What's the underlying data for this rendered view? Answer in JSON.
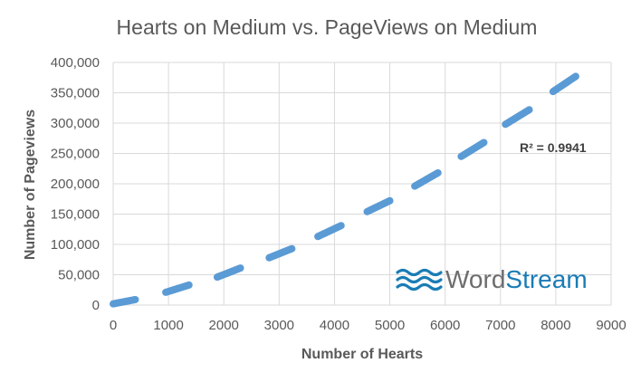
{
  "chart_data": {
    "type": "scatter",
    "title": "Hearts on Medium vs. PageViews on Medium",
    "xlabel": "Number of Hearts",
    "ylabel": "Number of Pageviews",
    "xlim": [
      0,
      9000
    ],
    "ylim": [
      0,
      400000
    ],
    "x_ticks": [
      0,
      1000,
      2000,
      3000,
      4000,
      5000,
      6000,
      7000,
      8000,
      9000
    ],
    "y_ticks": [
      0,
      50000,
      100000,
      150000,
      200000,
      250000,
      300000,
      350000,
      400000
    ],
    "x_tick_labels": [
      "0",
      "1000",
      "2000",
      "3000",
      "4000",
      "5000",
      "6000",
      "7000",
      "8000",
      "9000"
    ],
    "y_tick_labels": [
      "0",
      "50,000",
      "100,000",
      "150,000",
      "200,000",
      "250,000",
      "300,000",
      "350,000",
      "400,000"
    ],
    "grid": {
      "x": true,
      "y": true
    },
    "legend": "none",
    "annotation": "R² = 0.9941",
    "point_color": "#5b9bd5",
    "segments": [
      {
        "x": [
          0,
          400
        ],
        "y": [
          2000,
          9000
        ]
      },
      {
        "x": [
          950,
          1370
        ],
        "y": [
          21000,
          33000
        ]
      },
      {
        "x": [
          1880,
          2300
        ],
        "y": [
          46000,
          61000
        ]
      },
      {
        "x": [
          2820,
          3230
        ],
        "y": [
          78000,
          93000
        ]
      },
      {
        "x": [
          3700,
          4120
        ],
        "y": [
          113000,
          131000
        ]
      },
      {
        "x": [
          4590,
          5000
        ],
        "y": [
          154000,
          172000
        ]
      },
      {
        "x": [
          5450,
          5870
        ],
        "y": [
          196000,
          218000
        ]
      },
      {
        "x": [
          6290,
          6700
        ],
        "y": [
          245000,
          268000
        ]
      },
      {
        "x": [
          7090,
          7520
        ],
        "y": [
          298000,
          322000
        ]
      },
      {
        "x": [
          7950,
          8360
        ],
        "y": [
          352000,
          377000
        ]
      }
    ]
  },
  "watermark": {
    "brand_word_1": "Word",
    "brand_word_2": "Stream",
    "icon": "waves-icon",
    "color_1": "#6d6d6d",
    "color_2": "#1a7cb5"
  }
}
